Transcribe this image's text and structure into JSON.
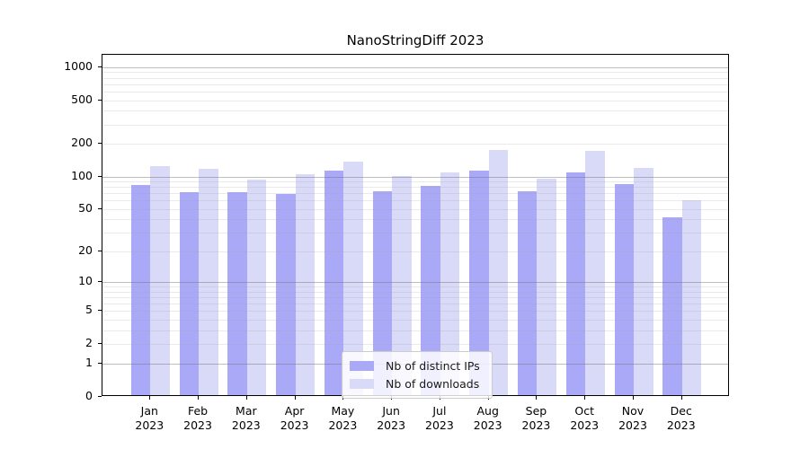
{
  "title": "NanoStringDiff 2023",
  "chart_data": {
    "type": "bar",
    "title": "NanoStringDiff 2023",
    "categories": [
      "Jan 2023",
      "Feb 2023",
      "Mar 2023",
      "Apr 2023",
      "May 2023",
      "Jun 2023",
      "Jul 2023",
      "Aug 2023",
      "Sep 2023",
      "Oct 2023",
      "Nov 2023",
      "Dec 2023"
    ],
    "x_months": [
      "Jan",
      "Feb",
      "Mar",
      "Apr",
      "May",
      "Jun",
      "Jul",
      "Aug",
      "Sep",
      "Oct",
      "Nov",
      "Dec"
    ],
    "x_year": "2023",
    "series": [
      {
        "name": "Nb of distinct IPs",
        "color": "#a9a9f7",
        "values": [
          84,
          72,
          72,
          69,
          113,
          73,
          82,
          113,
          73,
          109,
          85,
          42
        ]
      },
      {
        "name": "Nb of downloads",
        "color": "#d9d9f8",
        "values": [
          125,
          118,
          94,
          105,
          137,
          102,
          109,
          176,
          95,
          173,
          120,
          60
        ]
      }
    ],
    "yscale": "log1p",
    "yticks": [
      0,
      1,
      2,
      5,
      10,
      20,
      50,
      100,
      200,
      500,
      1000
    ],
    "ylim": [
      0,
      1300
    ],
    "grid": true,
    "legend_position": "lower center",
    "colors": {
      "distinct_ips": "#a9a9f7",
      "downloads": "#d9d9f8",
      "major_grid": "#bebebe",
      "minor_grid": "#eaeaea",
      "spine": "#000000"
    }
  }
}
